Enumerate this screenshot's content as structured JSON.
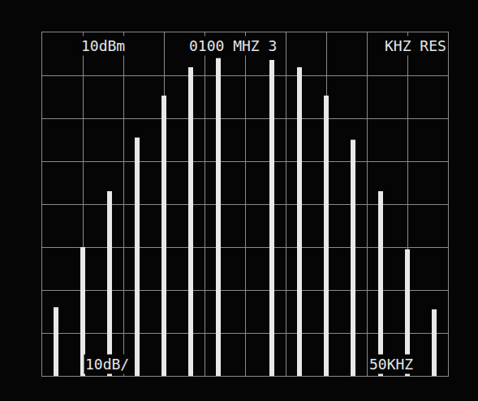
{
  "chart_data": {
    "type": "stem",
    "annotations": [
      "10dBm",
      "0100 MHZ 3",
      "KHZ RES",
      "10dB/",
      "50KHZ"
    ],
    "x": [
      -233,
      -200,
      -167,
      -133,
      -100,
      -67,
      -33,
      33,
      67,
      100,
      133,
      167,
      200,
      233
    ],
    "values": [
      -54,
      -40,
      -27,
      -14.5,
      -4.7,
      1.9,
      4,
      3.6,
      1.9,
      -4.7,
      -15,
      -27,
      -40.5,
      -54.5
    ],
    "xlim": [
      -250,
      250
    ],
    "ylim": [
      -70,
      10
    ],
    "xticks": [
      -250,
      -200,
      -150,
      -100,
      -50,
      0,
      50,
      100,
      150,
      200,
      250
    ],
    "yticks": [
      -70,
      -60,
      -50,
      -40,
      -30,
      -20,
      -10,
      0,
      10
    ],
    "grid": true,
    "tick_labels": false,
    "color": "#e8e8e8"
  }
}
